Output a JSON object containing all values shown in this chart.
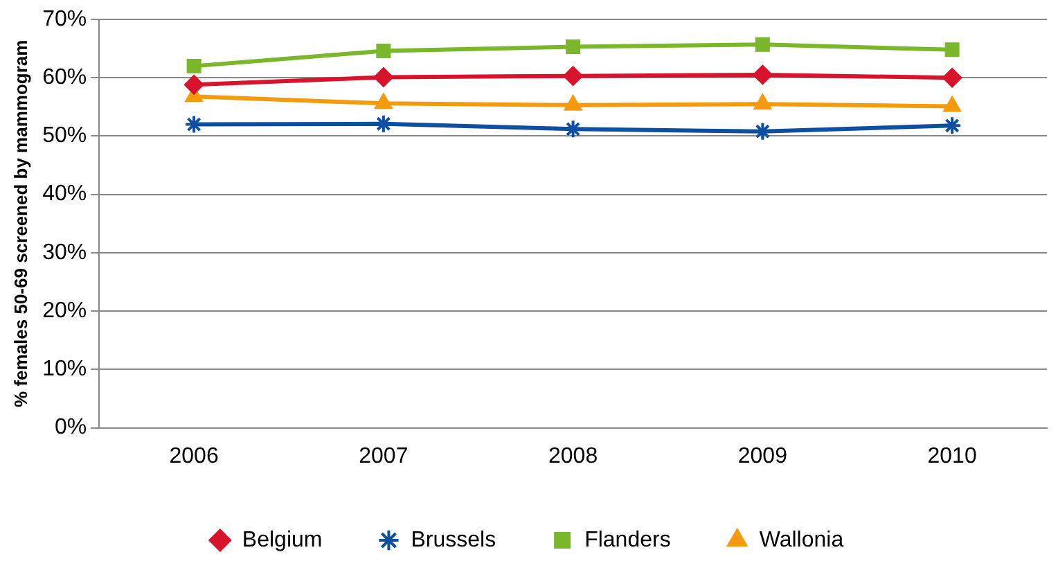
{
  "chart_data": {
    "type": "line",
    "ylabel": "% females 50-69 screened by mammogram",
    "categories": [
      "2006",
      "2007",
      "2008",
      "2009",
      "2010"
    ],
    "series": [
      {
        "name": "Belgium",
        "color": "#d7142b",
        "marker": "diamond",
        "values": [
          58.8,
          60.1,
          60.3,
          60.5,
          60.0
        ]
      },
      {
        "name": "Brussels",
        "color": "#0f4fa0",
        "marker": "cross",
        "values": [
          52.0,
          52.1,
          51.2,
          50.8,
          51.8
        ]
      },
      {
        "name": "Flanders",
        "color": "#7ab72b",
        "marker": "square",
        "values": [
          62.0,
          64.6,
          65.3,
          65.7,
          64.8
        ]
      },
      {
        "name": "Wallonia",
        "color": "#f39a0e",
        "marker": "triangle",
        "values": [
          56.8,
          55.6,
          55.3,
          55.5,
          55.1
        ]
      }
    ],
    "ylim": [
      0,
      70
    ],
    "yticks": [
      {
        "value": 0,
        "label": "0%"
      },
      {
        "value": 10,
        "label": "10%"
      },
      {
        "value": 20,
        "label": "20%"
      },
      {
        "value": 30,
        "label": "30%"
      },
      {
        "value": 40,
        "label": "40%"
      },
      {
        "value": 50,
        "label": "50%"
      },
      {
        "value": 60,
        "label": "60%"
      },
      {
        "value": 70,
        "label": "70%"
      }
    ],
    "grid": "y",
    "legend": "bottom"
  }
}
